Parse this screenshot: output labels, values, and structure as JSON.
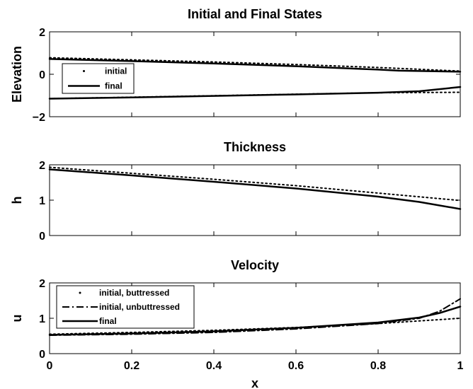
{
  "chart_data": [
    {
      "type": "line",
      "title": "Initial and Final States",
      "xlabel": "",
      "ylabel": "Elevation",
      "xlim": [
        0,
        1
      ],
      "ylim": [
        -2,
        2
      ],
      "xticks": [],
      "yticks": [
        "2",
        "0",
        "−2"
      ],
      "ytick_values": [
        2,
        0,
        -2
      ],
      "grid": false,
      "legend": "top-left",
      "series": [
        {
          "name": "initial",
          "style": "dotted",
          "x": [
            0,
            0.2,
            0.4,
            0.6,
            0.8,
            1.0
          ],
          "y": [
            0.78,
            0.68,
            0.58,
            0.46,
            0.32,
            0.15
          ]
        },
        {
          "name": "final",
          "style": "solid",
          "x": [
            0,
            0.2,
            0.4,
            0.6,
            0.8,
            0.85,
            1.0
          ],
          "y": [
            0.72,
            0.62,
            0.51,
            0.38,
            0.22,
            0.17,
            0.12
          ]
        },
        {
          "name": "",
          "style": "dotted",
          "x": [
            0,
            0.2,
            0.4,
            0.6,
            0.8,
            1.0
          ],
          "y": [
            -1.15,
            -1.08,
            -1.01,
            -0.94,
            -0.87,
            -0.85
          ]
        },
        {
          "name": "",
          "style": "solid",
          "x": [
            0,
            0.2,
            0.4,
            0.6,
            0.8,
            0.9,
            1.0
          ],
          "y": [
            -1.15,
            -1.09,
            -1.02,
            -0.95,
            -0.87,
            -0.8,
            -0.6
          ]
        }
      ]
    },
    {
      "type": "line",
      "title": "Thickness",
      "xlabel": "",
      "ylabel": "h",
      "xlim": [
        0,
        1
      ],
      "ylim": [
        0,
        2
      ],
      "xticks": [],
      "yticks": [
        "2",
        "1",
        "0"
      ],
      "ytick_values": [
        2,
        1,
        0
      ],
      "grid": false,
      "series": [
        {
          "name": "",
          "style": "dotted",
          "x": [
            0,
            0.2,
            0.4,
            0.6,
            0.8,
            1.0
          ],
          "y": [
            1.93,
            1.76,
            1.59,
            1.41,
            1.2,
            0.99
          ]
        },
        {
          "name": "",
          "style": "solid",
          "x": [
            0,
            0.2,
            0.4,
            0.6,
            0.8,
            0.9,
            1.0
          ],
          "y": [
            1.87,
            1.7,
            1.52,
            1.33,
            1.1,
            0.95,
            0.75
          ]
        }
      ]
    },
    {
      "type": "line",
      "title": "Velocity",
      "xlabel": "x",
      "ylabel": "u",
      "xlim": [
        0,
        1
      ],
      "ylim": [
        0,
        2
      ],
      "xticks": [
        "0",
        "0.2",
        "0.4",
        "0.6",
        "0.8",
        "1"
      ],
      "xtick_values": [
        0,
        0.2,
        0.4,
        0.6,
        0.8,
        1
      ],
      "yticks": [
        "2",
        "1",
        "0"
      ],
      "ytick_values": [
        2,
        1,
        0
      ],
      "grid": false,
      "legend": "top-left",
      "series": [
        {
          "name": "initial, buttressed",
          "style": "dotted",
          "x": [
            0,
            0.2,
            0.4,
            0.6,
            0.8,
            1.0
          ],
          "y": [
            0.55,
            0.6,
            0.66,
            0.74,
            0.85,
            1.0
          ]
        },
        {
          "name": "initial, unbuttressed",
          "style": "dashdot",
          "x": [
            0,
            0.2,
            0.4,
            0.6,
            0.8,
            0.9,
            0.95,
            1.0
          ],
          "y": [
            0.52,
            0.55,
            0.6,
            0.7,
            0.85,
            1.0,
            1.2,
            1.55
          ]
        },
        {
          "name": "final",
          "style": "solid",
          "x": [
            0,
            0.2,
            0.4,
            0.6,
            0.8,
            0.9,
            0.95,
            1.0
          ],
          "y": [
            0.53,
            0.57,
            0.63,
            0.73,
            0.88,
            1.02,
            1.15,
            1.33
          ]
        }
      ]
    }
  ]
}
